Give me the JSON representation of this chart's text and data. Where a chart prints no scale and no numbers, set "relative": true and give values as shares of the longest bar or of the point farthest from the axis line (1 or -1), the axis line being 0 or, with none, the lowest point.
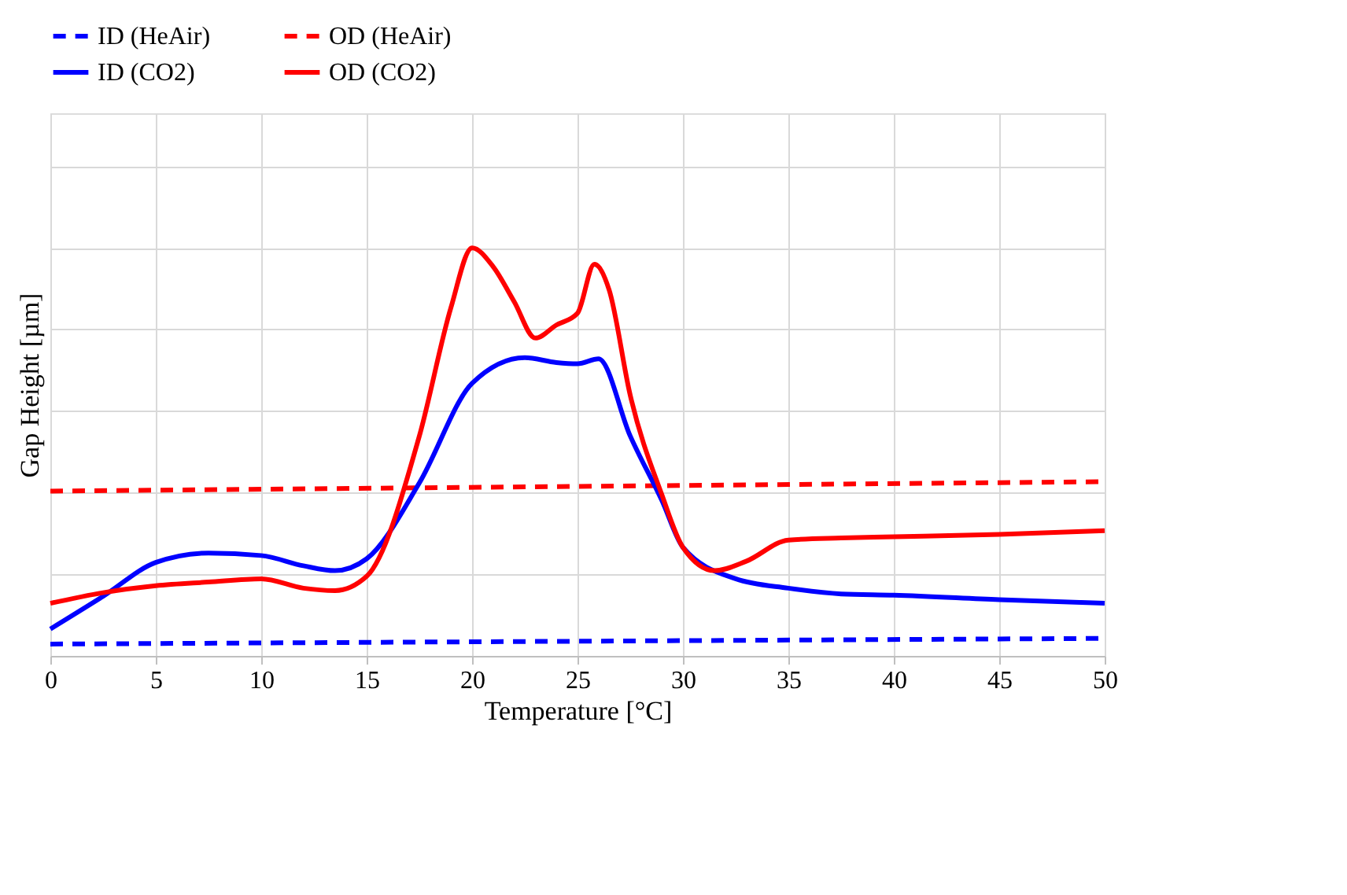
{
  "chart_data": {
    "type": "line",
    "xlabel": "Temperature [°C]",
    "ylabel": "Gap Height [µm]",
    "relative": true,
    "xlim": [
      0,
      50
    ],
    "xticks": [
      0,
      5,
      10,
      15,
      20,
      25,
      30,
      35,
      40,
      45,
      50
    ],
    "grid": true,
    "legend": "top",
    "marker": "none",
    "series": [
      {
        "name": "ID (HeAir)",
        "color": "#0000ff",
        "line_style": "dashed",
        "x": [
          0,
          50
        ],
        "values": [
          0.029,
          0.043
        ]
      },
      {
        "name": "OD (HeAir)",
        "color": "#ff0000",
        "line_style": "dashed",
        "x": [
          0,
          50
        ],
        "values": [
          0.404,
          0.427
        ]
      },
      {
        "name": "ID (CO2)",
        "color": "#0000ff",
        "line_style": "solid",
        "x": [
          0,
          2.5,
          5,
          7.5,
          10,
          12,
          13.5,
          15,
          17.5,
          20,
          22.5,
          24,
          25,
          26,
          27.5,
          29,
          30,
          32.5,
          35,
          37.5,
          40,
          45,
          50
        ],
        "values": [
          0.066,
          0.146,
          0.229,
          0.252,
          0.246,
          0.221,
          0.209,
          0.238,
          0.424,
          0.668,
          0.731,
          0.719,
          0.716,
          0.728,
          0.539,
          0.381,
          0.266,
          0.189,
          0.166,
          0.152,
          0.149,
          0.138,
          0.129
        ]
      },
      {
        "name": "OD (CO2)",
        "color": "#ff0000",
        "line_style": "solid",
        "x": [
          0,
          2.5,
          5,
          7.5,
          10,
          12,
          13.5,
          15,
          17.5,
          19,
          20,
          21,
          22,
          23,
          24,
          25,
          25.8,
          26.5,
          27.5,
          29,
          30,
          31.5,
          33,
          35,
          37.5,
          40,
          45,
          50
        ],
        "values": [
          0.129,
          0.155,
          0.172,
          0.181,
          0.189,
          0.166,
          0.16,
          0.195,
          0.539,
          0.854,
          1,
          0.954,
          0.868,
          0.779,
          0.811,
          0.84,
          0.96,
          0.897,
          0.639,
          0.395,
          0.266,
          0.209,
          0.232,
          0.284,
          0.289,
          0.292,
          0.298,
          0.307
        ]
      }
    ]
  }
}
